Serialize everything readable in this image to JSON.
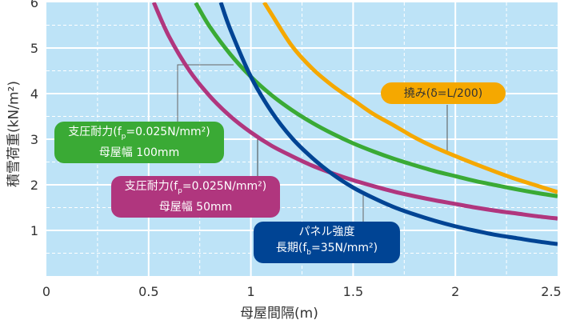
{
  "chart_data": {
    "type": "line",
    "xlabel": "母屋間隔(m)",
    "ylabel": "積雪荷重(kN/m²)",
    "xlim": [
      0,
      2.5
    ],
    "ylim": [
      0,
      6
    ],
    "xticks": [
      "0",
      "0.5",
      "1",
      "1.5",
      "2",
      "2.5"
    ],
    "yticks": [
      "1",
      "2",
      "3",
      "4",
      "5",
      "6"
    ],
    "grid": true,
    "series": [
      {
        "name": "支圧耐力(fp=0.025N/mm²) 母屋幅 100mm",
        "color": "#3aaa35",
        "x": [
          0.73,
          0.8,
          0.9,
          1.0,
          1.1,
          1.2,
          1.3,
          1.4,
          1.5,
          1.6,
          1.7,
          1.8,
          1.9,
          2.0,
          2.1,
          2.2,
          2.3,
          2.4,
          2.5
        ],
        "y": [
          5.99,
          5.46,
          4.86,
          4.37,
          3.97,
          3.64,
          3.36,
          3.12,
          2.91,
          2.73,
          2.57,
          2.43,
          2.3,
          2.19,
          2.08,
          1.99,
          1.9,
          1.82,
          1.75
        ]
      },
      {
        "name": "支圧耐力(fp=0.025N/mm²) 母屋幅 50mm",
        "color": "#b0367e",
        "x": [
          0.525,
          0.6,
          0.7,
          0.8,
          0.9,
          1.0,
          1.1,
          1.2,
          1.3,
          1.4,
          1.5,
          1.6,
          1.7,
          1.8,
          1.9,
          2.0,
          2.1,
          2.2,
          2.3,
          2.4,
          2.5
        ],
        "y": [
          6.0,
          5.25,
          4.5,
          3.94,
          3.5,
          3.15,
          2.86,
          2.63,
          2.42,
          2.25,
          2.1,
          1.97,
          1.85,
          1.75,
          1.66,
          1.58,
          1.5,
          1.43,
          1.37,
          1.31,
          1.26
        ]
      },
      {
        "name": "パネル強度 長期(fb=35N/mm²)",
        "color": "#004494",
        "x": [
          0.853,
          0.9,
          1.0,
          1.1,
          1.2,
          1.3,
          1.4,
          1.5,
          1.6,
          1.7,
          1.8,
          1.9,
          2.0,
          2.1,
          2.2,
          2.3,
          2.4,
          2.5
        ],
        "y": [
          6.0,
          5.4,
          4.37,
          3.61,
          3.03,
          2.59,
          2.23,
          1.94,
          1.71,
          1.51,
          1.35,
          1.21,
          1.09,
          0.99,
          0.9,
          0.83,
          0.76,
          0.7
        ]
      },
      {
        "name": "撓み(δ=L/200)",
        "color": "#f5a800",
        "x": [
          1.065,
          1.1,
          1.2,
          1.3,
          1.4,
          1.5,
          1.6,
          1.7,
          1.8,
          1.9,
          2.0,
          2.1,
          2.2,
          2.3,
          2.4,
          2.5
        ],
        "y": [
          6.0,
          5.75,
          5.05,
          4.55,
          4.17,
          3.86,
          3.55,
          3.3,
          3.04,
          2.82,
          2.63,
          2.45,
          2.28,
          2.12,
          1.98,
          1.84
        ]
      }
    ]
  },
  "labels": {
    "green": {
      "l1a": "支圧耐力(f",
      "l1sub": "p",
      "l1b": "=0.025N/mm²)",
      "l2": "母屋幅 100mm"
    },
    "magenta": {
      "l1a": "支圧耐力(f",
      "l1sub": "p",
      "l1b": "=0.025N/mm²)",
      "l2": "母屋幅 50mm"
    },
    "blue": {
      "l1": "パネル強度",
      "l2a": "長期(f",
      "l2sub": "b",
      "l2b": "=35N/mm²)"
    },
    "orange": {
      "l1": "撓み(δ=L/200)"
    }
  }
}
